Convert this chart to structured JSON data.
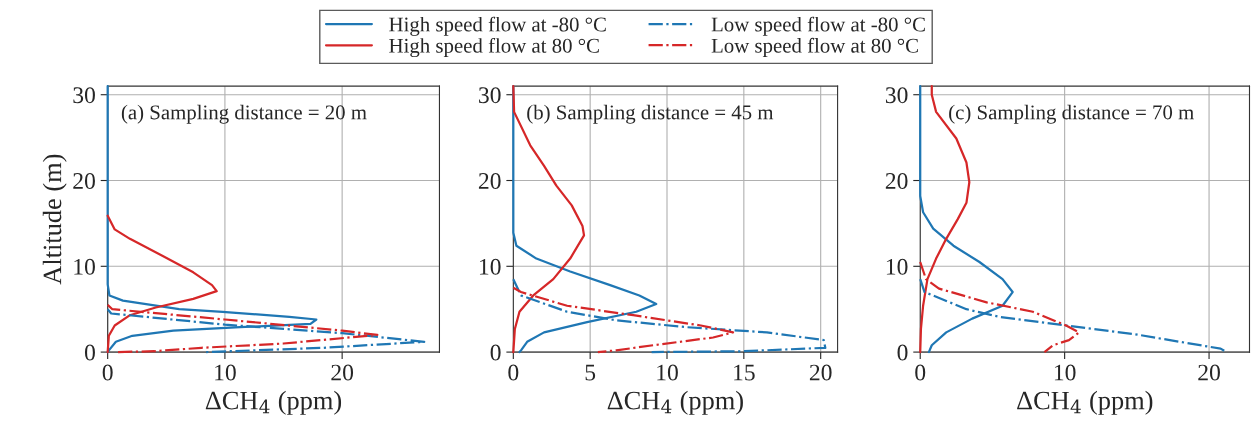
{
  "chart_data": [
    {
      "type": "line",
      "ylabel": "Altitude (m)",
      "xlabel": "ΔCH$_{4}$ (ppm)",
      "annotations": [
        "(a) Sampling distance = 20 m"
      ],
      "xlim": [
        0,
        28.3
      ],
      "ylim": [
        0,
        31
      ],
      "xticks": [
        0,
        10,
        20
      ],
      "yticks": [
        0,
        10,
        20,
        30
      ],
      "grid": true,
      "legend": "top",
      "series": [
        {
          "name": "High speed flow at -80 °C",
          "color": "#1f77b4",
          "line_style": "solid",
          "x": [
            0,
            0,
            0.15,
            1.3,
            6.1,
            9.8,
            15.5,
            17.8,
            17.3,
            11.3,
            5.6,
            2.1,
            0.7,
            0.1,
            0
          ],
          "values": [
            31,
            7.9,
            6.6,
            6.0,
            5.0,
            4.7,
            4.1,
            3.8,
            3.3,
            2.9,
            2.5,
            1.9,
            1.2,
            0.2,
            0
          ]
        },
        {
          "name": "High speed flow at 80 °C",
          "color": "#d62728",
          "line_style": "solid",
          "x": [
            0,
            0.6,
            1.9,
            4.7,
            7.3,
            8.9,
            9.3,
            7.3,
            4.1,
            1.9,
            0.6,
            0.1,
            0
          ],
          "values": [
            15.9,
            14.3,
            13.2,
            11.2,
            9.3,
            7.8,
            7.1,
            6.2,
            5.2,
            4.3,
            3.1,
            1.9,
            0
          ]
        },
        {
          "name": "Low speed flow at -80 °C",
          "color": "#1f77b4",
          "line_style": "dashdot",
          "x": [
            0,
            0.3,
            10,
            20,
            27,
            18.4,
            8.4
          ],
          "values": [
            5.0,
            4.5,
            3.2,
            2.2,
            1.2,
            0.5,
            0
          ]
        },
        {
          "name": "Low speed flow at 80 °C",
          "color": "#d62728",
          "line_style": "dashdot",
          "x": [
            0,
            0.4,
            10,
            20,
            23,
            15,
            8,
            4,
            0.7
          ],
          "values": [
            5.5,
            5.0,
            3.8,
            2.5,
            2.0,
            1.0,
            0.5,
            0.1,
            0
          ]
        }
      ]
    },
    {
      "type": "line",
      "xlabel": "ΔCH$_{4}$ (ppm)",
      "annotations": [
        "(b) Sampling distance = 45 m"
      ],
      "xlim": [
        0,
        21.1
      ],
      "ylim": [
        0,
        31
      ],
      "xticks": [
        0,
        5,
        10,
        15,
        20
      ],
      "yticks": [
        0,
        10,
        20,
        30
      ],
      "grid": true,
      "series": [
        {
          "color": "#1f77b4",
          "line_style": "solid",
          "x": [
            0,
            0,
            0.2,
            1.5,
            3.7,
            6.3,
            8.2,
            9.3,
            8.0,
            4.8,
            2.0,
            0.9,
            0.5,
            0.4
          ],
          "values": [
            31,
            13.9,
            12.4,
            10.9,
            9.4,
            7.8,
            6.6,
            5.6,
            4.7,
            3.5,
            2.3,
            1.2,
            0.2,
            0
          ]
        },
        {
          "color": "#d62728",
          "line_style": "solid",
          "x": [
            0,
            0.05,
            1.1,
            2.0,
            2.8,
            3.8,
            4.5,
            4.6,
            3.7,
            2.6,
            1.3,
            0.4,
            0.1,
            0
          ],
          "values": [
            31,
            28,
            24.1,
            21.7,
            19.4,
            17.1,
            14.7,
            13.6,
            10.9,
            8.5,
            6.6,
            4.7,
            2.7,
            0
          ]
        },
        {
          "color": "#1f77b4",
          "line_style": "dashdot",
          "x": [
            0,
            0.5,
            3.5,
            6.7,
            11.3,
            16.5,
            20.2,
            20.3,
            15,
            9
          ],
          "values": [
            8.5,
            6.6,
            4.7,
            3.7,
            2.9,
            2.3,
            1.4,
            0.5,
            0.1,
            0
          ]
        },
        {
          "color": "#d62728",
          "line_style": "dashdot",
          "x": [
            0,
            0.5,
            3.5,
            7.8,
            12.2,
            14.3,
            13,
            9.1,
            6.7,
            5.5
          ],
          "values": [
            7.5,
            7.0,
            5.4,
            4.3,
            3.1,
            2.3,
            1.7,
            0.8,
            0.2,
            0
          ]
        }
      ]
    },
    {
      "type": "line",
      "xlabel": "ΔCH$_{4}$ (ppm)",
      "annotations": [
        "(c) Sampling distance = 70 m"
      ],
      "xlim": [
        0,
        22.8
      ],
      "ylim": [
        0,
        31
      ],
      "xticks": [
        0,
        10,
        20
      ],
      "yticks": [
        0,
        10,
        20,
        30
      ],
      "grid": true,
      "series": [
        {
          "color": "#1f77b4",
          "line_style": "solid",
          "x": [
            0,
            0,
            0.2,
            0.9,
            2.3,
            4.1,
            5.7,
            6.4,
            5.7,
            3.6,
            1.8,
            0.8,
            0.6
          ],
          "values": [
            31,
            18.2,
            16.3,
            14.4,
            12.4,
            10.5,
            8.5,
            7.0,
            5.4,
            3.9,
            2.3,
            0.8,
            0
          ]
        },
        {
          "color": "#d62728",
          "line_style": "solid",
          "x": [
            0.8,
            0.8,
            1.1,
            2.5,
            3.2,
            3.4,
            3.2,
            2.6,
            1.8,
            1.1,
            0.5,
            0.2,
            0.05,
            0
          ],
          "values": [
            31,
            30,
            28,
            24.9,
            22.1,
            19.8,
            17.4,
            15.5,
            13.2,
            10.9,
            8.5,
            5.4,
            2.7,
            0
          ]
        },
        {
          "color": "#1f77b4",
          "line_style": "dashdot",
          "x": [
            0,
            0.3,
            3.2,
            5.5,
            10.1,
            14.8,
            20.8,
            21.2
          ],
          "values": [
            8.5,
            7.0,
            5.0,
            4.1,
            3.1,
            2.1,
            0.4,
            0
          ]
        },
        {
          "color": "#d62728",
          "line_style": "dashdot",
          "x": [
            0,
            0.4,
            1.3,
            4.6,
            7.8,
            10.1,
            11.0,
            10.3,
            9.2,
            8.6
          ],
          "values": [
            10.5,
            8.5,
            7.4,
            5.8,
            4.7,
            3.1,
            2.3,
            1.4,
            0.8,
            0
          ]
        }
      ]
    }
  ]
}
